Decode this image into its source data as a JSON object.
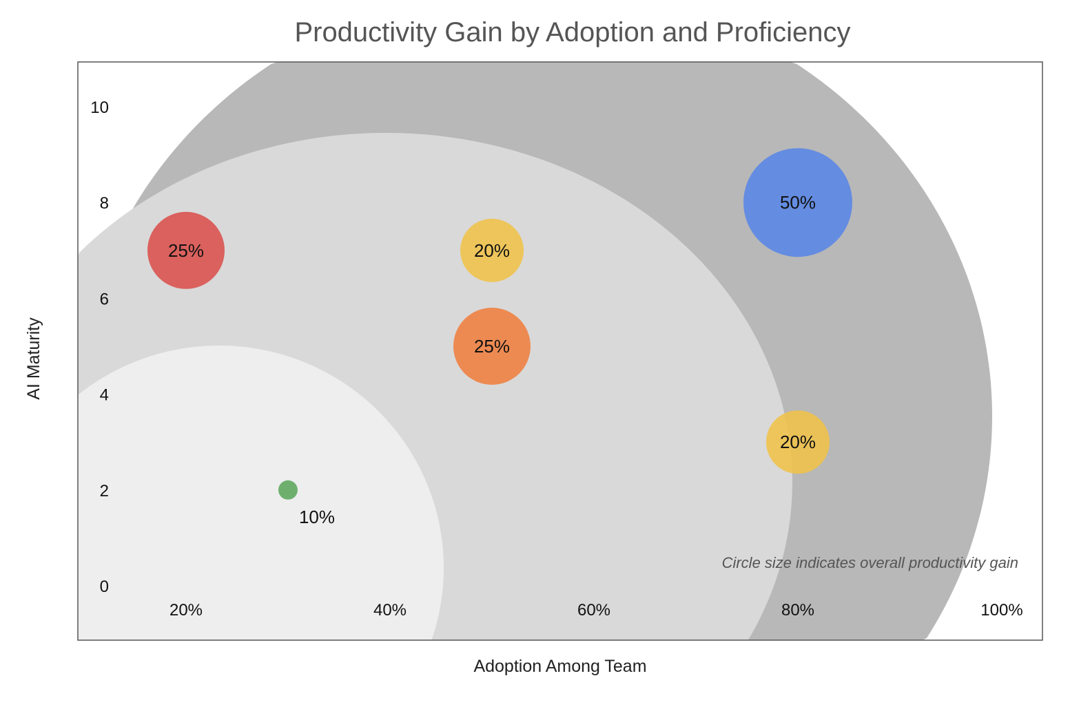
{
  "chart_data": {
    "type": "scatter",
    "subtype": "bubble",
    "title": "Productivity Gain by Adoption and Proficiency",
    "xlabel": "Adoption Among Team",
    "ylabel": "AI Maturity",
    "annotation": "Circle size indicates overall productivity gain",
    "grid": false,
    "xlim": [
      0.1,
      1.05
    ],
    "ylim": [
      -1.1,
      10.95
    ],
    "x_ticks": [
      0.2,
      0.4,
      0.6,
      0.8,
      1.0
    ],
    "x_tick_labels": [
      "20%",
      "40%",
      "60%",
      "80%",
      "100%"
    ],
    "y_ticks": [
      0,
      2,
      4,
      6,
      8,
      10
    ],
    "y_tick_labels": [
      "0",
      "2",
      "4",
      "6",
      "8",
      "10"
    ],
    "points": [
      {
        "x": 0.2,
        "y": 7,
        "gain": 25,
        "label": "25%",
        "color": "#d9534f"
      },
      {
        "x": 0.5,
        "y": 7,
        "gain": 20,
        "label": "20%",
        "color": "#f0c24b"
      },
      {
        "x": 0.5,
        "y": 5,
        "gain": 25,
        "label": "25%",
        "color": "#ee8142"
      },
      {
        "x": 0.8,
        "y": 8,
        "gain": 50,
        "label": "50%",
        "color": "#5b87e5"
      },
      {
        "x": 0.8,
        "y": 3,
        "gain": 20,
        "label": "20%",
        "color": "#f0c24b"
      },
      {
        "x": 0.3,
        "y": 2,
        "gain": 10,
        "label": "10%",
        "color": "#5fa75f"
      }
    ],
    "background_colors": [
      "#b8b8b8",
      "#d9d9d9",
      "#eeeeee"
    ]
  }
}
